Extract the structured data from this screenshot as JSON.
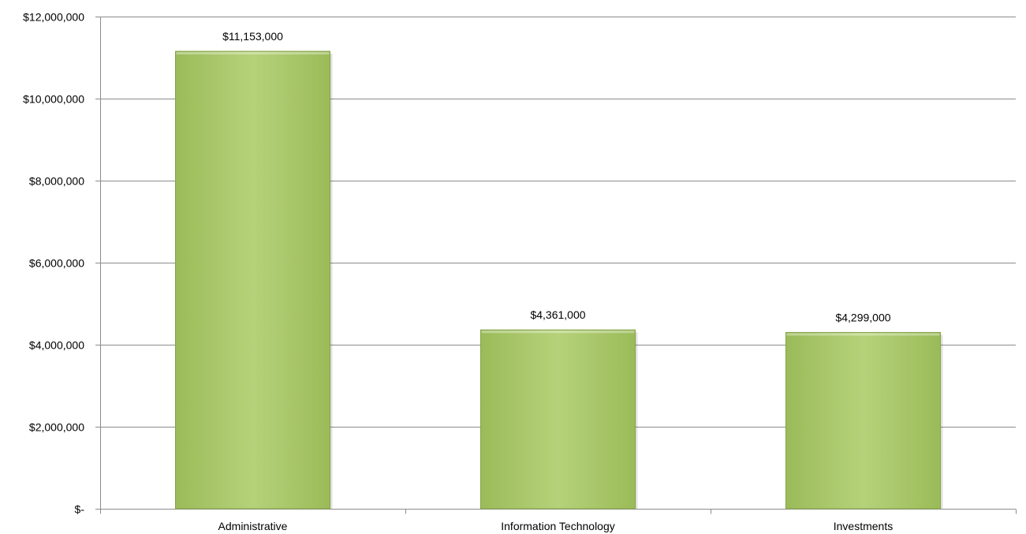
{
  "chart_data": {
    "type": "bar",
    "categories": [
      "Administrative",
      "Information Technology",
      "Investments"
    ],
    "values": [
      11153000,
      4361000,
      4299000
    ],
    "data_labels": [
      "$11,153,000",
      "$4,361,000",
      "$4,299,000"
    ],
    "y_ticks": [
      0,
      2000000,
      4000000,
      6000000,
      8000000,
      10000000,
      12000000
    ],
    "y_tick_labels": [
      "$-",
      "$2,000,000",
      "$4,000,000",
      "$6,000,000",
      "$8,000,000",
      "$10,000,000",
      "$12,000,000"
    ],
    "ylim": [
      0,
      12000000
    ],
    "grid": true,
    "legend": "none",
    "bar_color": "#9bbb59",
    "bar_highlight": "#b5d27a",
    "bar_edge": "#84a348",
    "grid_color": "#8c8c8c",
    "axis_color": "#8c8c8c"
  }
}
